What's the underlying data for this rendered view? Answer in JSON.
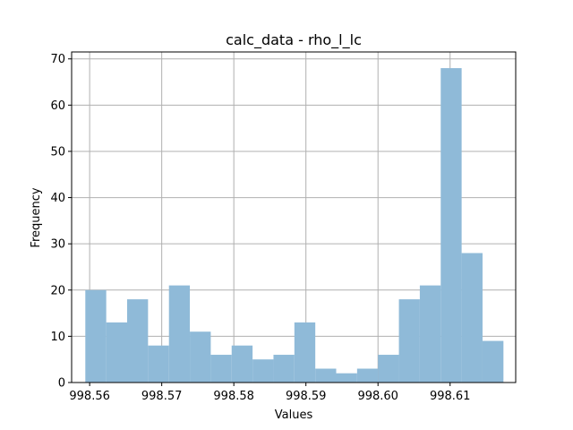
{
  "chart_data": {
    "type": "bar",
    "title": "calc_data - rho_l_lc",
    "xlabel": "Values",
    "ylabel": "Frequency",
    "xlim": [
      998.5575,
      998.6191
    ],
    "ylim": [
      0,
      71.5
    ],
    "x_ticks": [
      "998.56",
      "998.57",
      "998.58",
      "998.59",
      "998.60",
      "998.61"
    ],
    "x_tick_values": [
      998.56,
      998.57,
      998.58,
      998.59,
      998.6,
      998.61
    ],
    "y_ticks": [
      "0",
      "10",
      "20",
      "30",
      "40",
      "50",
      "60",
      "70"
    ],
    "y_tick_values": [
      0,
      10,
      20,
      30,
      40,
      50,
      60,
      70
    ],
    "grid": true,
    "bar_color": "#8fbad8",
    "bin_edges": [
      998.5594,
      998.5623,
      998.5652,
      998.5681,
      998.571,
      998.5739,
      998.5768,
      998.5797,
      998.5826,
      998.5855,
      998.5884,
      998.5913,
      998.5942,
      998.5971,
      998.6,
      998.6029,
      998.6058,
      998.6087,
      998.6116,
      998.6145,
      998.6174
    ],
    "values": [
      20,
      13,
      18,
      8,
      21,
      11,
      6,
      8,
      5,
      6,
      13,
      3,
      2,
      3,
      6,
      18,
      21,
      68,
      28,
      9
    ]
  }
}
